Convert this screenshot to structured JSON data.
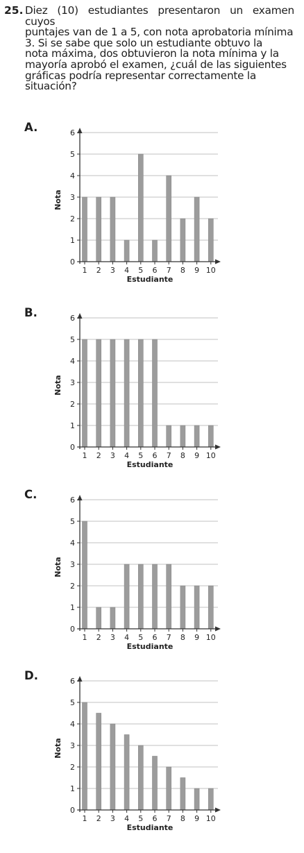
{
  "question": {
    "number": "25.",
    "lines": [
      "Diez (10) estudiantes presentaron un examen cuyos",
      "puntajes van de 1 a 5, con nota aprobatoria mínima",
      "3. Si se sabe que solo un estudiante obtuvo la",
      "nota máxima, dos obtuvieron la nota mínima y la",
      "mayoría aprobó el examen, ¿cuál de las siguientes",
      "gráficas podría representar correctamente la",
      "situación?"
    ]
  },
  "options": [
    {
      "letter": "A."
    },
    {
      "letter": "B."
    },
    {
      "letter": "C."
    },
    {
      "letter": "D."
    }
  ],
  "chart_data": [
    {
      "type": "bar",
      "xlabel": "Estudiante",
      "ylabel": "Nota",
      "categories": [
        "1",
        "2",
        "3",
        "4",
        "5",
        "6",
        "7",
        "8",
        "9",
        "10"
      ],
      "values": [
        3,
        3,
        3,
        1,
        5,
        1,
        4,
        2,
        3,
        2
      ],
      "yticks": [
        "0",
        "1",
        "2",
        "3",
        "4",
        "5",
        "6"
      ],
      "ylim": [
        0,
        6
      ],
      "grid": true
    },
    {
      "type": "bar",
      "xlabel": "Estudiante",
      "ylabel": "Nota",
      "categories": [
        "1",
        "2",
        "3",
        "4",
        "5",
        "6",
        "7",
        "8",
        "9",
        "10"
      ],
      "values": [
        5,
        5,
        5,
        5,
        5,
        5,
        1,
        1,
        1,
        1
      ],
      "yticks": [
        "0",
        "1",
        "2",
        "3",
        "4",
        "5",
        "6"
      ],
      "ylim": [
        0,
        6
      ],
      "grid": true
    },
    {
      "type": "bar",
      "xlabel": "Estudiante",
      "ylabel": "Nota",
      "categories": [
        "1",
        "2",
        "3",
        "4",
        "5",
        "6",
        "7",
        "8",
        "9",
        "10"
      ],
      "values": [
        5,
        1,
        1,
        3,
        3,
        3,
        3,
        2,
        2,
        2
      ],
      "yticks": [
        "0",
        "1",
        "2",
        "3",
        "4",
        "5",
        "6"
      ],
      "ylim": [
        0,
        6
      ],
      "grid": true
    },
    {
      "type": "bar",
      "xlabel": "Estudiante",
      "ylabel": "Nota",
      "categories": [
        "1",
        "2",
        "3",
        "4",
        "5",
        "6",
        "7",
        "8",
        "9",
        "10"
      ],
      "values": [
        5,
        4.5,
        4,
        3.5,
        3,
        2.5,
        2,
        1.5,
        1,
        1
      ],
      "yticks": [
        "0",
        "1",
        "2",
        "3",
        "4",
        "5",
        "6"
      ],
      "ylim": [
        0,
        6
      ],
      "grid": true
    }
  ],
  "colors": {
    "bar": "#9c9c9c",
    "bar_edge": "#8a8a8a",
    "grid": "#c2c2c2",
    "axis": "#333333",
    "text": "#1e1e1e"
  }
}
